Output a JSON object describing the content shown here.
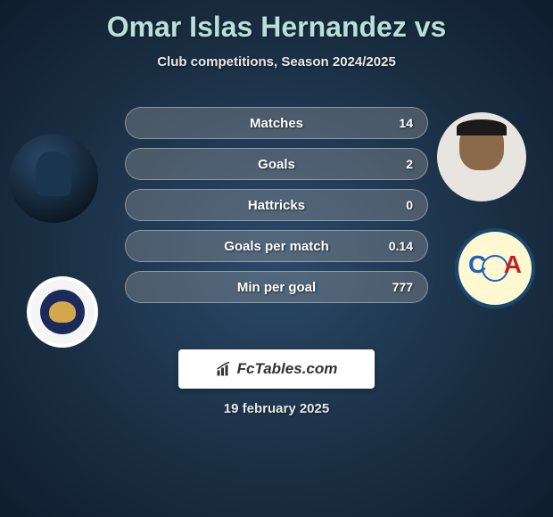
{
  "header": {
    "title": "Omar Islas Hernandez vs",
    "subtitle": "Club competitions, Season 2024/2025"
  },
  "stats": [
    {
      "label": "Matches",
      "right_value": "14",
      "fill_pct": 100
    },
    {
      "label": "Goals",
      "right_value": "2",
      "fill_pct": 100
    },
    {
      "label": "Hattricks",
      "right_value": "0",
      "fill_pct": 100
    },
    {
      "label": "Goals per match",
      "right_value": "0.14",
      "fill_pct": 100
    },
    {
      "label": "Min per goal",
      "right_value": "777",
      "fill_pct": 100
    }
  ],
  "footer": {
    "brand": "FcTables.com",
    "date": "19 february 2025"
  },
  "style": {
    "title_color": "#b8e0d8",
    "pill_border": "rgba(255,255,255,0.5)",
    "pill_fill": "rgba(255,255,255,0.22)",
    "bg_gradient_inner": "#2a4a6a",
    "bg_gradient_outer": "#0f1d2e"
  }
}
